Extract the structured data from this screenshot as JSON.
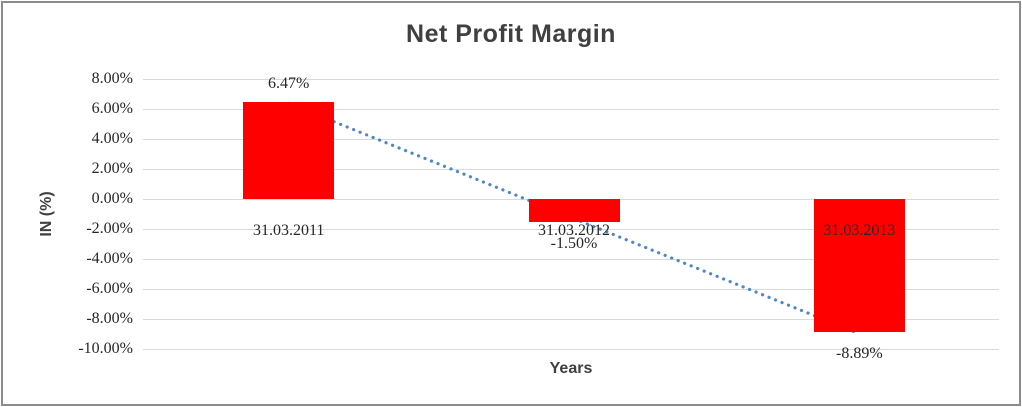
{
  "chart_data": {
    "type": "bar",
    "title": "Net Profit Margin",
    "xlabel": "Years",
    "ylabel": "IN (%)",
    "categories": [
      "31.03.2011",
      "31.03.2012",
      "31.03.2013"
    ],
    "series": [
      {
        "name": "Net Profit Margin",
        "values": [
          6.47,
          -1.5,
          -8.89
        ],
        "value_labels": [
          "6.47%",
          "-1.50%",
          "-8.89%"
        ]
      }
    ],
    "ylim": [
      -10,
      8
    ],
    "ytick_step": 2,
    "ytick_labels": [
      "8.00%",
      "6.00%",
      "4.00%",
      "2.00%",
      "0.00%",
      "-2.00%",
      "-4.00%",
      "-6.00%",
      "-8.00%",
      "-10.00%"
    ],
    "grid": true,
    "legend": "none",
    "colors": {
      "bar": "#ff0000",
      "trendline": "#4f86c6",
      "gridline": "#d9d9d9",
      "title_text": "#404040",
      "label_text": "#262626"
    },
    "trendline": {
      "type": "linear",
      "style": "dotted"
    }
  }
}
